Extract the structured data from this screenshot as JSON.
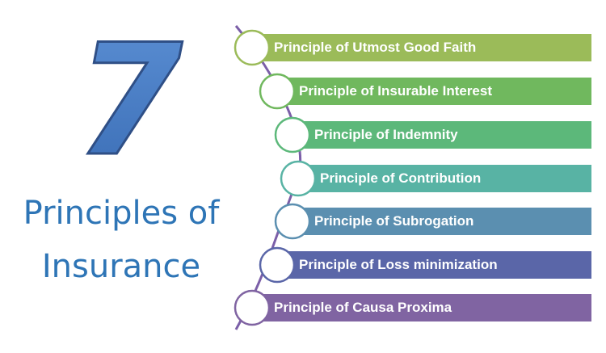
{
  "number": "7",
  "title": {
    "line1": "Principles of",
    "line2": "Insurance"
  },
  "accent_color": "#2e75b6",
  "items": [
    {
      "label": "Principle of Utmost Good Faith",
      "color": "#9bbb59"
    },
    {
      "label": "Principle of Insurable Interest",
      "color": "#70b85e"
    },
    {
      "label": "Principle of Indemnity",
      "color": "#5cb87a"
    },
    {
      "label": "Principle of Contribution",
      "color": "#58b3a4"
    },
    {
      "label": "Principle of Subrogation",
      "color": "#5b8fb0"
    },
    {
      "label": "Principle of Loss minimization",
      "color": "#5a66a8"
    },
    {
      "label": "Principle of Causa Proxima",
      "color": "#8064a2"
    }
  ]
}
